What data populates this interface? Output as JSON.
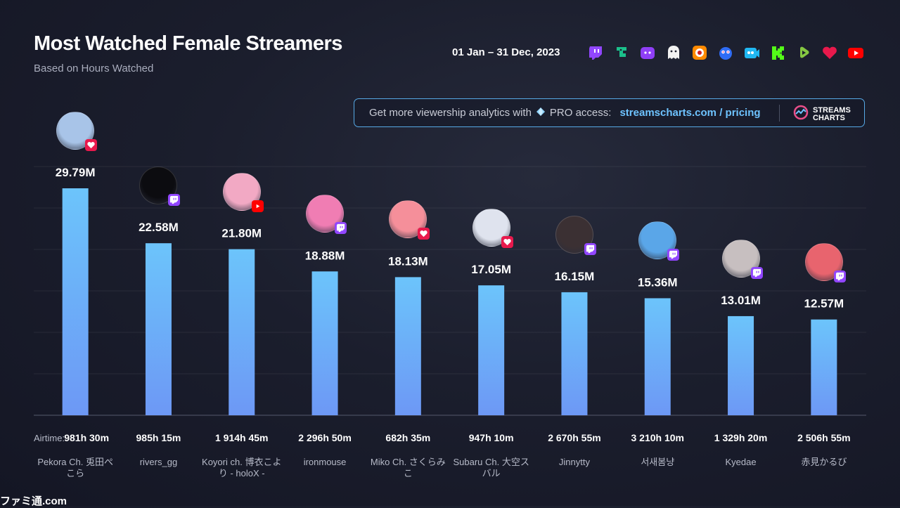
{
  "header": {
    "title": "Most Watched Female Streamers",
    "subtitle": "Based on Hours Watched",
    "date_range": "01 Jan – 31 Dec, 2023"
  },
  "platform_icons": [
    "twitch-icon",
    "trovo-icon",
    "kick-purple-icon",
    "ghost-icon",
    "bigo-icon",
    "nimo-icon",
    "facebook-gaming-icon",
    "kick-icon",
    "rumble-icon",
    "heart-icon",
    "youtube-icon"
  ],
  "promo": {
    "text": "Get more viewership analytics with",
    "pro": "PRO access:",
    "link": "streamscharts.com / pricing",
    "logo_line1": "STREAMS",
    "logo_line2": "CHARTS"
  },
  "airtime_label": "Airtime:",
  "watermark": "ファミ通.com",
  "colors": {
    "bar_top": "#6cc4fb",
    "bar_bottom": "#6d98f5",
    "twitch": "#9146ff",
    "youtube": "#ff0000",
    "other": "#e8194c"
  },
  "streamers": [
    {
      "name": "Pekora Ch. 兎田ぺこら",
      "airtime": "981h 30m",
      "platform": "heart",
      "avatar": "#a8c4e8"
    },
    {
      "name": "rivers_gg",
      "airtime": "985h 15m",
      "platform": "twitch",
      "avatar": "#0c0c10"
    },
    {
      "name": "Koyori ch. 博衣こより - holoX -",
      "airtime": "1 914h 45m",
      "platform": "youtube",
      "avatar": "#f2a9c4"
    },
    {
      "name": "ironmouse",
      "airtime": "2 296h 50m",
      "platform": "twitch",
      "avatar": "#f07db3"
    },
    {
      "name": "Miko Ch. さくらみこ",
      "airtime": "682h 35m",
      "platform": "heart",
      "avatar": "#f58f9a"
    },
    {
      "name": "Subaru Ch. 大空スバル",
      "airtime": "947h 10m",
      "platform": "heart",
      "avatar": "#dfe3ee"
    },
    {
      "name": "Jinnytty",
      "airtime": "2 670h 55m",
      "platform": "twitch",
      "avatar": "#3b3033"
    },
    {
      "name": "서새봄냥",
      "airtime": "3 210h 10m",
      "platform": "twitch",
      "avatar": "#5aa6e8"
    },
    {
      "name": "Kyedae",
      "airtime": "1 329h 20m",
      "platform": "twitch",
      "avatar": "#c7bfc0"
    },
    {
      "name": "赤見かるび",
      "airtime": "2 506h 55m",
      "platform": "twitch",
      "avatar": "#e8646e"
    }
  ],
  "chart_data": {
    "type": "bar",
    "title": "Most Watched Female Streamers",
    "subtitle": "Based on Hours Watched",
    "categories": [
      "Pekora Ch. 兎田ぺこら",
      "rivers_gg",
      "Koyori ch. 博衣こより - holoX -",
      "ironmouse",
      "Miko Ch. さくらみこ",
      "Subaru Ch. 大空スバル",
      "Jinnytty",
      "서새봄냥",
      "Kyedae",
      "赤見かるび"
    ],
    "values": [
      29.79,
      22.58,
      21.8,
      18.88,
      18.13,
      17.05,
      16.15,
      15.36,
      13.01,
      12.57
    ],
    "value_labels": [
      "29.79M",
      "22.58M",
      "21.80M",
      "18.88M",
      "18.13M",
      "17.05M",
      "16.15M",
      "15.36M",
      "13.01M",
      "12.57M"
    ],
    "ylim": [
      0,
      30
    ],
    "grid": true,
    "legend": "none"
  }
}
